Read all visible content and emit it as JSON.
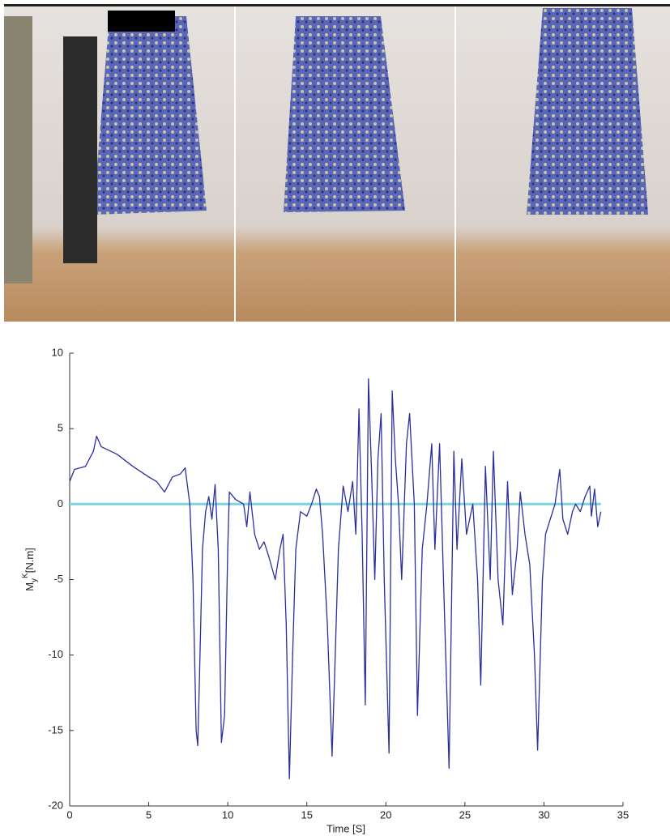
{
  "chart_data": {
    "type": "line",
    "xlabel": "Time [S]",
    "ylabel": {
      "base": "M",
      "sub": "y",
      "sup": "K",
      "unit": "[N.m]"
    },
    "xlim": [
      0,
      35
    ],
    "xticks": [
      0,
      5,
      10,
      15,
      20,
      25,
      30,
      35
    ],
    "ylim": [
      -20,
      10
    ],
    "yticks": [
      -20,
      -15,
      -10,
      -5,
      0,
      5,
      10
    ],
    "series": [
      {
        "color": "#2a2f9e",
        "x": [
          0,
          0.3,
          1,
          1.5,
          1.7,
          2,
          3,
          4,
          5,
          5.5,
          6,
          6.5,
          7,
          7.3,
          7.6,
          7.8,
          8.0,
          8.1,
          8.2,
          8.4,
          8.6,
          8.8,
          9.0,
          9.2,
          9.4,
          9.6,
          9.8,
          10.0,
          10.1,
          10.5,
          11,
          11.2,
          11.4,
          11.7,
          12,
          12.3,
          12.6,
          13,
          13.3,
          13.5,
          13.7,
          13.9,
          14.1,
          14.3,
          14.6,
          15,
          15.3,
          15.6,
          15.8,
          16,
          16.3,
          16.6,
          16.8,
          17.0,
          17.3,
          17.6,
          17.9,
          18.1,
          18.3,
          18.5,
          18.7,
          18.9,
          19.1,
          19.3,
          19.5,
          19.7,
          19.9,
          20.2,
          20.4,
          20.6,
          20.8,
          21.0,
          21.3,
          21.5,
          21.8,
          22.0,
          22.3,
          22.6,
          22.9,
          23.1,
          23.4,
          23.7,
          24.0,
          24.3,
          24.5,
          24.8,
          25.1,
          25.5,
          25.8,
          26.0,
          26.3,
          26.6,
          26.8,
          27.1,
          27.4,
          27.7,
          28.0,
          28.3,
          28.5,
          28.8,
          29.1,
          29.4,
          29.6,
          29.9,
          30.1,
          30.4,
          30.7,
          31.0,
          31.2,
          31.5,
          31.8,
          32.0,
          32.3,
          32.6,
          32.9,
          33.0,
          33.2,
          33.4,
          33.6
        ],
        "values": [
          1.5,
          2.3,
          2.5,
          3.5,
          4.5,
          3.8,
          3.3,
          2.5,
          1.8,
          1.5,
          0.8,
          1.8,
          2,
          2.4,
          0,
          -5,
          -15,
          -16,
          -12,
          -3,
          -0.5,
          0.5,
          -1,
          1.3,
          -3,
          -15.8,
          -14,
          -3,
          0.8,
          0.3,
          0,
          -1.5,
          0.8,
          -2,
          -3,
          -2.5,
          -3.5,
          -5,
          -3,
          -2,
          -8,
          -18.2,
          -10,
          -3,
          -0.5,
          -0.8,
          0,
          1,
          0.5,
          -2,
          -8,
          -16.7,
          -10,
          -3,
          1.2,
          -0.5,
          1.5,
          -2,
          6.3,
          -2,
          -13.3,
          8.3,
          2,
          -5,
          3,
          6,
          -5,
          -16.5,
          7.5,
          3,
          0,
          -5,
          4,
          6,
          0,
          -14,
          -3,
          0,
          4,
          -3,
          4,
          -7,
          -17.5,
          3.5,
          -3,
          3,
          -2,
          0,
          -5,
          -12,
          2.5,
          -5,
          3.5,
          -5,
          -8,
          1.5,
          -6,
          -3,
          0.8,
          -2,
          -4,
          -10,
          -16.3,
          -5,
          -2,
          -1,
          0,
          2.3,
          -1,
          -2,
          -0.5,
          0,
          -0.5,
          0.5,
          1.2,
          -0.8,
          1,
          -1.5,
          -0.5
        ]
      },
      {
        "color": "#7fd3dd",
        "x": [
          0,
          33.6
        ],
        "values": [
          0,
          0
        ]
      }
    ]
  }
}
